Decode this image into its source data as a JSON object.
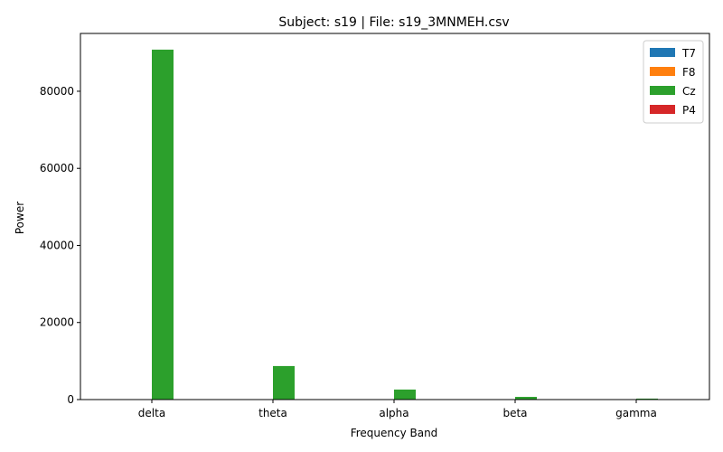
{
  "chart_data": {
    "type": "bar",
    "title": "Subject: s19 | File: s19_3MNMEH.csv",
    "xlabel": "Frequency Band",
    "ylabel": "Power",
    "categories": [
      "delta",
      "theta",
      "alpha",
      "beta",
      "gamma"
    ],
    "series": [
      {
        "name": "T7",
        "color": "#1f77b4",
        "values": [
          0,
          0,
          0,
          0,
          0
        ]
      },
      {
        "name": "F8",
        "color": "#ff7f0e",
        "values": [
          0,
          0,
          0,
          0,
          0
        ]
      },
      {
        "name": "Cz",
        "color": "#2ca02c",
        "values": [
          90800,
          8700,
          2600,
          700,
          250
        ]
      },
      {
        "name": "P4",
        "color": "#d62728",
        "values": [
          0,
          0,
          0,
          0,
          0
        ]
      }
    ],
    "ylim": [
      0,
      95000
    ],
    "yticks": [
      0,
      20000,
      40000,
      60000,
      80000
    ],
    "grid": false,
    "legend_position": "top-right"
  }
}
